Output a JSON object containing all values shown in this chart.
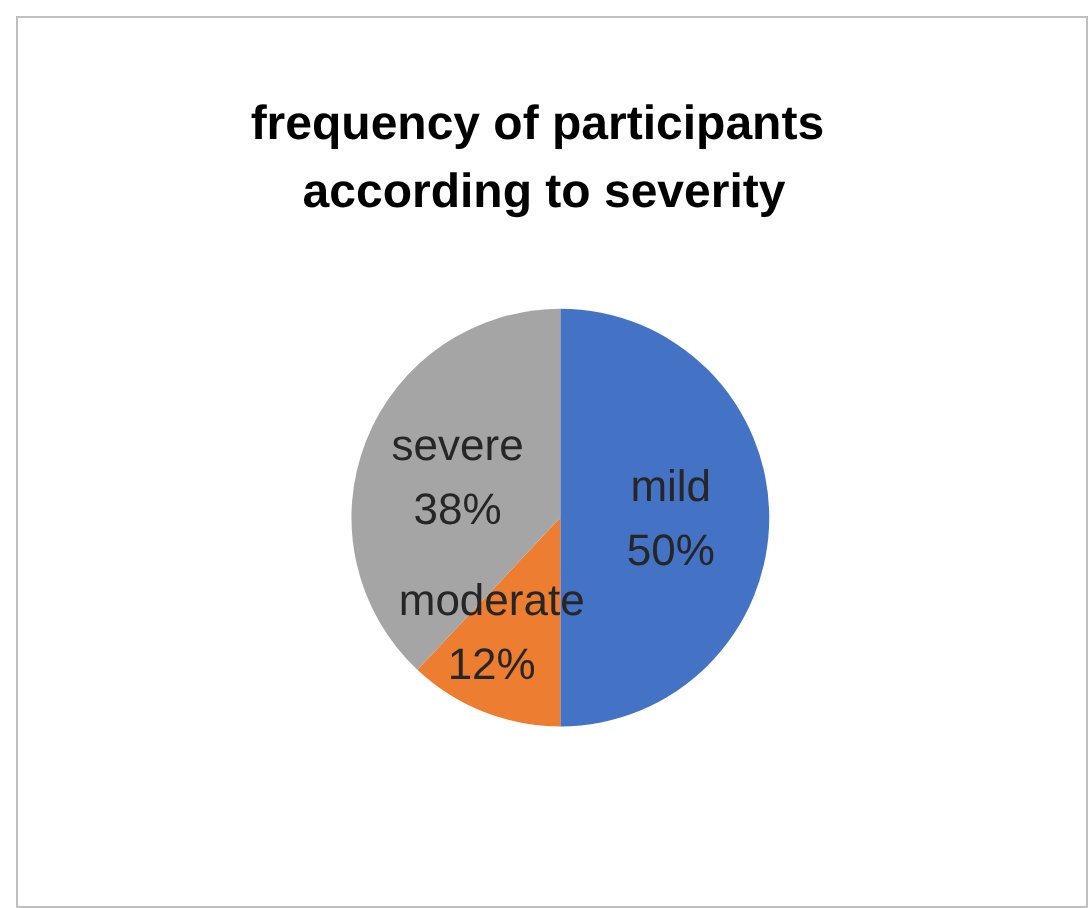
{
  "chart_data": {
    "type": "pie",
    "title": "frequency of participants according to severity",
    "categories": [
      "mild",
      "moderate",
      "severe"
    ],
    "values": [
      50,
      12,
      38
    ],
    "colors": [
      "#4472c4",
      "#ed7d31",
      "#a5a5a5"
    ],
    "value_labels": [
      "50%",
      "12%",
      "38%"
    ],
    "legend": false
  }
}
